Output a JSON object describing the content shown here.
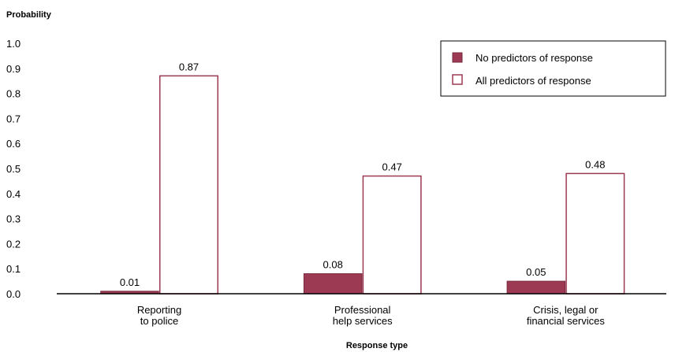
{
  "chart_data": {
    "type": "bar",
    "ylabel": "Probability",
    "xlabel": "Response type",
    "ylim": [
      0,
      1.0
    ],
    "yticks": [
      "0.0",
      "0.1",
      "0.2",
      "0.3",
      "0.4",
      "0.5",
      "0.6",
      "0.7",
      "0.8",
      "0.9",
      "1.0"
    ],
    "categories": [
      [
        "Reporting",
        "to police"
      ],
      [
        "Professional",
        "help services"
      ],
      [
        "Crisis, legal or",
        "financial services"
      ]
    ],
    "series": [
      {
        "name": "No predictors of response",
        "values": [
          0.01,
          0.08,
          0.05
        ],
        "labels": [
          "0.01",
          "0.08",
          "0.05"
        ],
        "fill": "#9b3a52",
        "stroke": "#7a2a3f"
      },
      {
        "name": "All predictors of response",
        "values": [
          0.87,
          0.47,
          0.48
        ],
        "labels": [
          "0.87",
          "0.47",
          "0.48"
        ],
        "fill": "#ffffff",
        "stroke": "#9b3a52"
      }
    ],
    "legend_position": "top-right",
    "grid": false
  }
}
